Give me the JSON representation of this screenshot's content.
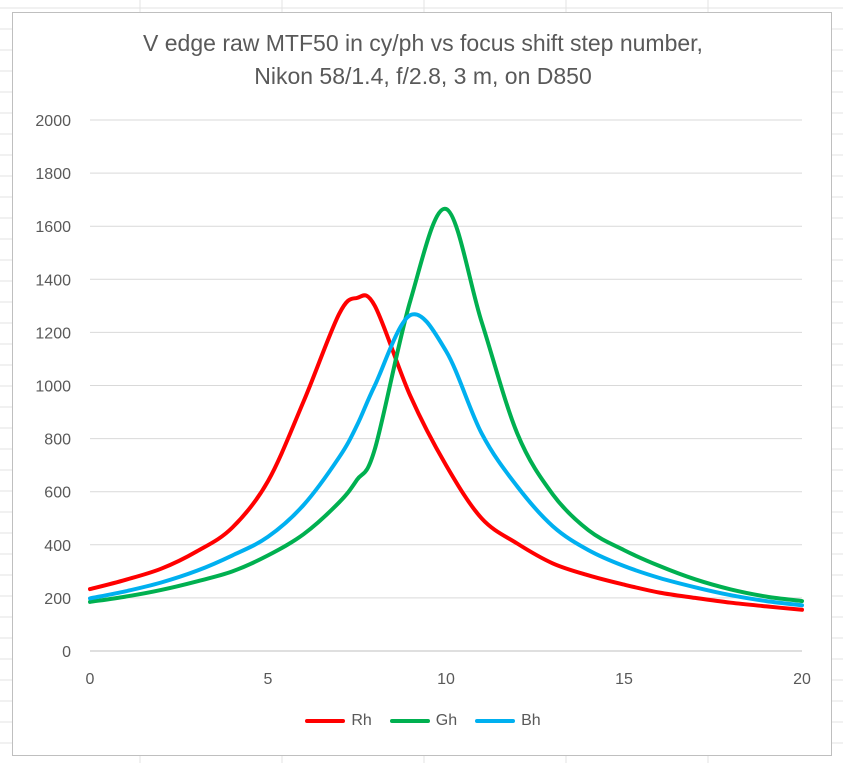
{
  "chart_data": {
    "type": "line",
    "title_line1": "V edge raw MTF50 in cy/ph vs focus shift step number,",
    "title_line2": "Nikon 58/1.4, f/2.8, 3 m, on D850",
    "xlim": [
      0,
      20
    ],
    "ylim": [
      0,
      2000
    ],
    "xticks": [
      0,
      5,
      10,
      15,
      20
    ],
    "yticks": [
      0,
      200,
      400,
      600,
      800,
      1000,
      1200,
      1400,
      1600,
      1800,
      2000
    ],
    "grid": "horizontal",
    "legend_position": "bottom",
    "x": [
      0,
      1,
      2,
      3,
      4,
      5,
      6,
      7,
      7.5,
      8,
      9,
      10,
      11,
      12,
      13,
      14,
      15,
      16,
      17,
      18,
      19,
      20
    ],
    "series": [
      {
        "name": "Rh",
        "color": "#ff0000",
        "values": [
          233,
          268,
          310,
          375,
          465,
          640,
          940,
          1270,
          1330,
          1300,
          960,
          700,
          500,
          405,
          330,
          285,
          250,
          220,
          200,
          182,
          168,
          155
        ]
      },
      {
        "name": "Gh",
        "color": "#00b050",
        "values": [
          185,
          205,
          230,
          262,
          300,
          360,
          440,
          560,
          645,
          760,
          1320,
          1665,
          1240,
          820,
          590,
          455,
          380,
          320,
          270,
          232,
          205,
          188
        ]
      },
      {
        "name": "Bh",
        "color": "#00b0f0",
        "values": [
          198,
          225,
          258,
          302,
          360,
          430,
          550,
          730,
          850,
          1000,
          1265,
          1130,
          820,
          620,
          470,
          380,
          320,
          275,
          240,
          210,
          188,
          172
        ]
      }
    ]
  }
}
